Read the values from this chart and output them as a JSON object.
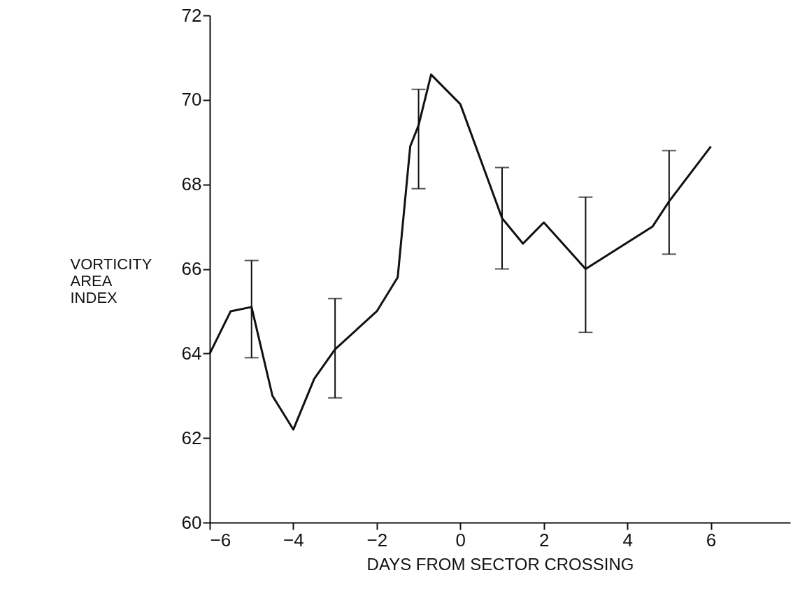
{
  "chart_data": {
    "type": "line",
    "xlabel": "DAYS FROM SECTOR CROSSING",
    "ylabel": "VORTICITY\nAREA\nINDEX",
    "x": [
      -6,
      -5.5,
      -5,
      -4.5,
      -4,
      -3.5,
      -3,
      -2,
      -1.5,
      -1.2,
      -1,
      -0.7,
      0,
      1,
      1.5,
      2,
      3,
      4.6,
      5,
      6
    ],
    "series": [
      {
        "color": "#111111",
        "values": [
          64.0,
          65.0,
          65.1,
          63.0,
          62.2,
          63.4,
          64.1,
          65.0,
          65.8,
          68.9,
          69.4,
          70.6,
          69.9,
          67.2,
          66.6,
          67.1,
          66.0,
          67.0,
          67.6,
          68.9
        ],
        "errors": [
          null,
          null,
          [
            63.9,
            66.2
          ],
          null,
          null,
          null,
          [
            62.95,
            65.3
          ],
          null,
          null,
          null,
          [
            67.9,
            70.25
          ],
          null,
          null,
          [
            66.0,
            68.4
          ],
          null,
          null,
          [
            64.5,
            67.7
          ],
          null,
          [
            66.35,
            68.8
          ],
          null
        ]
      }
    ],
    "xlim": [
      -6,
      7.9
    ],
    "ylim": [
      60,
      72
    ],
    "xticks": [
      -6,
      -4,
      -2,
      0,
      2,
      4,
      6
    ],
    "yticks": [
      60,
      62,
      64,
      66,
      68,
      70,
      72
    ],
    "grid": false,
    "marker": "none",
    "line_style": "solid"
  }
}
